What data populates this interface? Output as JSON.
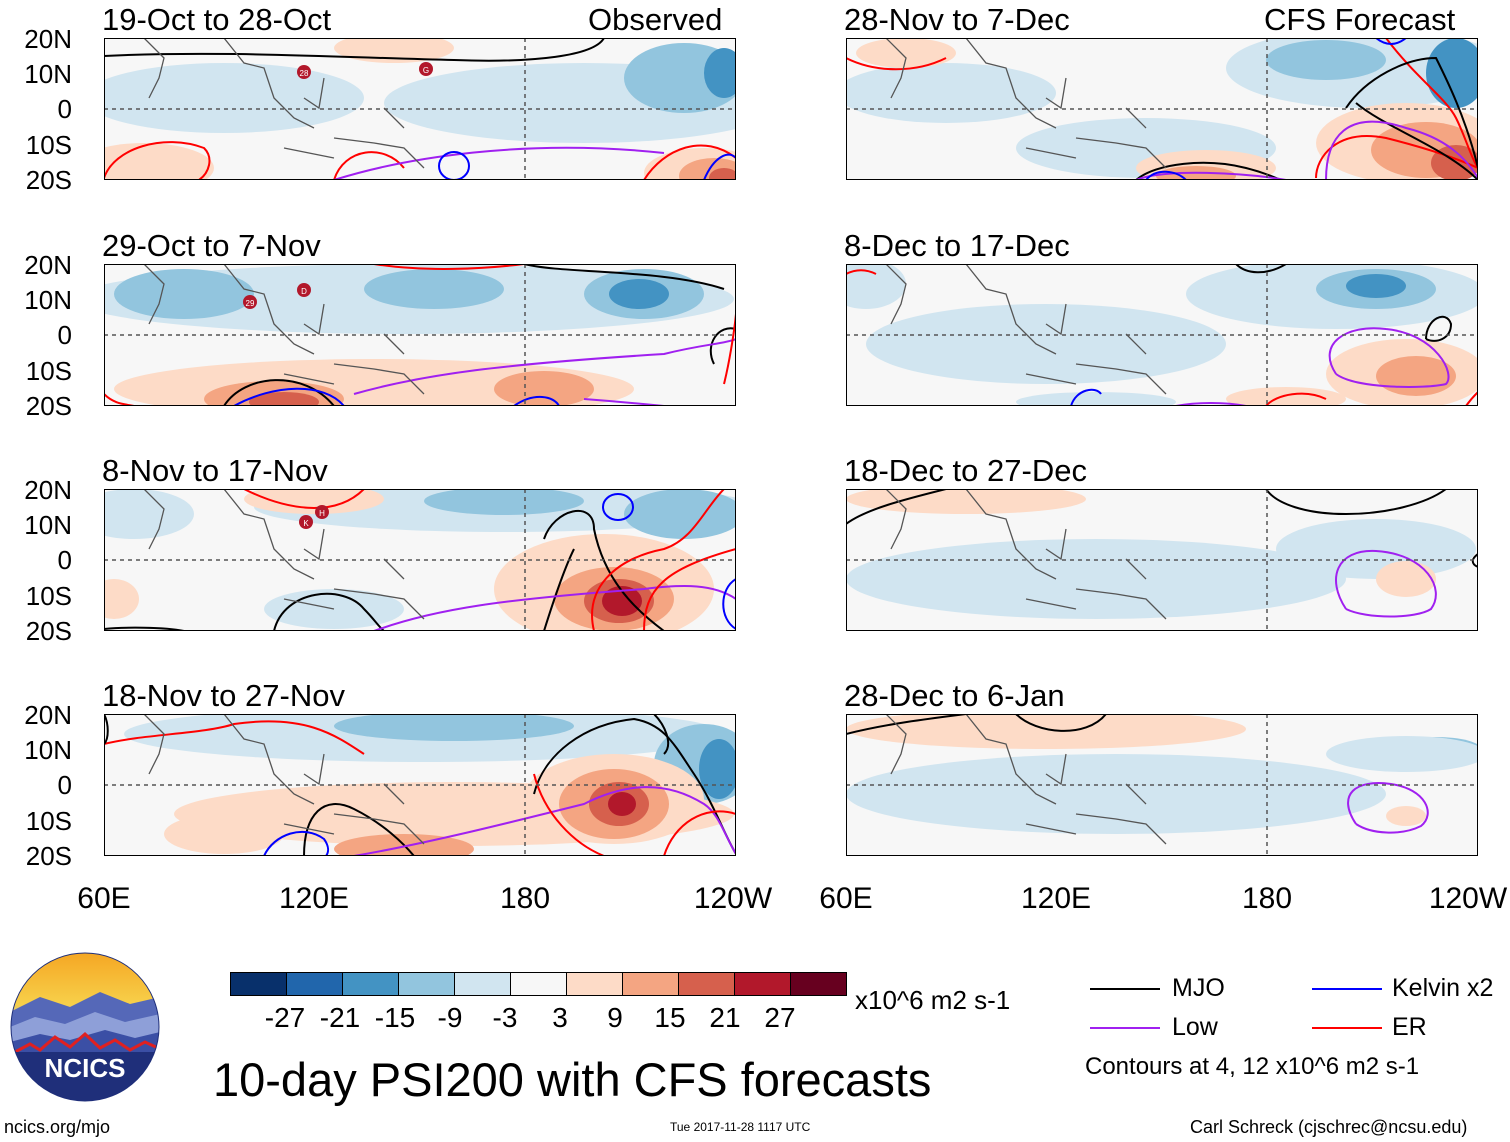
{
  "title": "10-day PSI200 with CFS forecasts",
  "site": "ncics.org/mjo",
  "timestamp": "Tue 2017-11-28 1117 UTC",
  "credit": "Carl Schreck (cjschrec@ncsu.edu)",
  "logo_text": "NCICS",
  "header_left_tag": "Observed",
  "header_right_tag": "CFS Forecast",
  "lat_labels": [
    "20N",
    "10N",
    "0",
    "10S",
    "20S"
  ],
  "lon_labels": [
    "60E",
    "120E",
    "180",
    "120W"
  ],
  "panels": [
    {
      "period": "19-Oct to 28-Oct"
    },
    {
      "period": "29-Oct to 7-Nov"
    },
    {
      "period": "8-Nov to 17-Nov"
    },
    {
      "period": "18-Nov to 27-Nov"
    },
    {
      "period": "28-Nov to 7-Dec"
    },
    {
      "period": "8-Dec to 17-Dec"
    },
    {
      "period": "18-Dec to 27-Dec"
    },
    {
      "period": "28-Dec to 6-Jan"
    }
  ],
  "colorbar": {
    "unit": "x10^6 m2 s-1",
    "ticks": [
      "-27",
      "-21",
      "-15",
      "-9",
      "-3",
      "3",
      "9",
      "15",
      "21",
      "27"
    ],
    "colors": [
      "#08306b",
      "#2166ac",
      "#4393c3",
      "#92c5de",
      "#d1e5f0",
      "#f7f7f7",
      "#fddbc7",
      "#f4a582",
      "#d6604d",
      "#b2182b",
      "#67001f"
    ]
  },
  "legend": {
    "items": [
      {
        "label": "MJO",
        "color": "#000000"
      },
      {
        "label": "Kelvin x2",
        "color": "#0000ff"
      },
      {
        "label": "Low",
        "color": "#a020f0"
      },
      {
        "label": "ER",
        "color": "#ff0000"
      }
    ],
    "note": "Contours at 4, 12 x10^6 m2 s-1"
  },
  "storms": [
    {
      "label": "28"
    },
    {
      "label": "G"
    },
    {
      "label": "29"
    },
    {
      "label": "D"
    },
    {
      "label": "K"
    },
    {
      "label": "H"
    }
  ]
}
